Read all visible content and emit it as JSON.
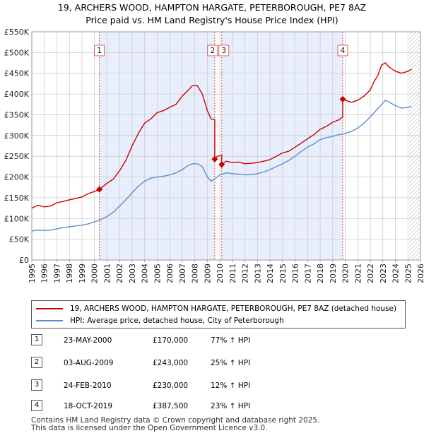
{
  "title_line1": "19, ARCHERS WOOD, HAMPTON HARGATE, PETERBOROUGH, PE7 8AZ",
  "title_line2": "Price paid vs. HM Land Registry's House Price Index (HPI)",
  "colors": {
    "property": "#cc0000",
    "hpi": "#5b8fd0",
    "shade": "#e8eefb",
    "grid": "#cccccc",
    "vline": "#d04040"
  },
  "chart_data": {
    "type": "line",
    "x_range": [
      1995,
      2026
    ],
    "ylim": [
      0,
      550000
    ],
    "y_ticks": [
      {
        "value": 0,
        "label": "£0"
      },
      {
        "value": 50000,
        "label": "£50K"
      },
      {
        "value": 100000,
        "label": "£100K"
      },
      {
        "value": 150000,
        "label": "£150K"
      },
      {
        "value": 200000,
        "label": "£200K"
      },
      {
        "value": 250000,
        "label": "£250K"
      },
      {
        "value": 300000,
        "label": "£300K"
      },
      {
        "value": 350000,
        "label": "£350K"
      },
      {
        "value": 400000,
        "label": "£400K"
      },
      {
        "value": 450000,
        "label": "£450K"
      },
      {
        "value": 500000,
        "label": "£500K"
      },
      {
        "value": 550000,
        "label": "£550K"
      }
    ],
    "x_ticks": [
      "1995",
      "1996",
      "1997",
      "1998",
      "1999",
      "2000",
      "2001",
      "2002",
      "2003",
      "2004",
      "2005",
      "2006",
      "2007",
      "2008",
      "2009",
      "2010",
      "2011",
      "2012",
      "2013",
      "2014",
      "2015",
      "2016",
      "2017",
      "2018",
      "2019",
      "2020",
      "2021",
      "2022",
      "2023",
      "2024",
      "2025",
      "2026"
    ],
    "shaded_ranges": [
      [
        2000.39,
        2009.59
      ],
      [
        2010.15,
        2019.8
      ]
    ],
    "hatched_from": 2025.1,
    "series": [
      {
        "name": "19, ARCHERS WOOD, HAMPTON HARGATE, PETERBOROUGH, PE7 8AZ (detached house)",
        "x": [
          1995.0,
          1995.5,
          1996.0,
          1996.5,
          1997.0,
          1997.5,
          1998.0,
          1998.5,
          1999.0,
          1999.5,
          2000.0,
          2000.39,
          2000.39,
          2001.0,
          2001.5,
          2002.0,
          2002.5,
          2003.0,
          2003.5,
          2004.0,
          2004.5,
          2005.0,
          2005.5,
          2006.0,
          2006.5,
          2007.0,
          2007.5,
          2007.8,
          2008.2,
          2008.6,
          2009.0,
          2009.3,
          2009.59,
          2009.59,
          2009.8,
          2010.15,
          2010.15,
          2010.5,
          2011.0,
          2011.5,
          2012.0,
          2012.5,
          2013.0,
          2013.5,
          2014.0,
          2014.5,
          2015.0,
          2015.5,
          2016.0,
          2016.5,
          2017.0,
          2017.5,
          2018.0,
          2018.5,
          2019.0,
          2019.5,
          2019.8,
          2019.8,
          2020.0,
          2020.5,
          2021.0,
          2021.5,
          2022.0,
          2022.3,
          2022.6,
          2022.9,
          2023.2,
          2023.5,
          2024.0,
          2024.5,
          2025.0,
          2025.3
        ],
        "y": [
          125000,
          132000,
          128000,
          130000,
          138000,
          141000,
          145000,
          148000,
          152000,
          160000,
          165000,
          170000,
          170000,
          185000,
          195000,
          215000,
          240000,
          275000,
          305000,
          330000,
          340000,
          355000,
          360000,
          368000,
          375000,
          395000,
          410000,
          420000,
          420000,
          400000,
          360000,
          340000,
          338000,
          243000,
          250000,
          252000,
          230000,
          238000,
          235000,
          236000,
          232000,
          233000,
          235000,
          238000,
          242000,
          250000,
          258000,
          262000,
          272000,
          282000,
          292000,
          302000,
          315000,
          322000,
          332000,
          338000,
          345000,
          387500,
          385000,
          380000,
          385000,
          395000,
          410000,
          430000,
          445000,
          470000,
          475000,
          465000,
          455000,
          450000,
          455000,
          460000
        ]
      },
      {
        "name": "HPI: Average price, detached house, City of Peterborough",
        "x": [
          1995.0,
          1995.5,
          1996.0,
          1996.5,
          1997.0,
          1997.5,
          1998.0,
          1998.5,
          1999.0,
          1999.5,
          2000.0,
          2000.5,
          2001.0,
          2001.5,
          2002.0,
          2002.5,
          2003.0,
          2003.5,
          2004.0,
          2004.5,
          2005.0,
          2005.5,
          2006.0,
          2006.5,
          2007.0,
          2007.5,
          2007.8,
          2008.2,
          2008.6,
          2009.0,
          2009.3,
          2009.6,
          2010.0,
          2010.5,
          2011.0,
          2011.5,
          2012.0,
          2012.5,
          2013.0,
          2013.5,
          2014.0,
          2014.5,
          2015.0,
          2015.5,
          2016.0,
          2016.5,
          2017.0,
          2017.5,
          2018.0,
          2018.5,
          2019.0,
          2019.5,
          2020.0,
          2020.5,
          2021.0,
          2021.5,
          2022.0,
          2022.3,
          2022.6,
          2022.9,
          2023.2,
          2023.5,
          2024.0,
          2024.5,
          2025.0,
          2025.3
        ],
        "y": [
          70000,
          72000,
          71000,
          72000,
          75000,
          78000,
          80000,
          82000,
          84000,
          87000,
          92000,
          97000,
          105000,
          115000,
          130000,
          145000,
          162000,
          178000,
          190000,
          197000,
          200000,
          202000,
          205000,
          210000,
          218000,
          228000,
          232000,
          232000,
          225000,
          200000,
          190000,
          195000,
          205000,
          210000,
          208000,
          207000,
          205000,
          206000,
          208000,
          212000,
          218000,
          225000,
          232000,
          240000,
          250000,
          262000,
          272000,
          280000,
          290000,
          295000,
          298000,
          302000,
          305000,
          310000,
          318000,
          330000,
          345000,
          355000,
          365000,
          375000,
          385000,
          380000,
          372000,
          366000,
          368000,
          370000
        ]
      }
    ],
    "sales": [
      {
        "label": "1",
        "x": 2000.39,
        "y": 170000
      },
      {
        "label": "2",
        "x": 2009.59,
        "y": 243000
      },
      {
        "label": "3",
        "x": 2010.15,
        "y": 230000
      },
      {
        "label": "4",
        "x": 2019.8,
        "y": 387500
      }
    ]
  },
  "legend": {
    "property_label": "19, ARCHERS WOOD, HAMPTON HARGATE, PETERBOROUGH, PE7 8AZ (detached house)",
    "hpi_label": "HPI: Average price, detached house, City of Peterborough"
  },
  "transactions": [
    {
      "num": "1",
      "date": "23-MAY-2000",
      "price": "£170,000",
      "hpi": "77% ↑ HPI"
    },
    {
      "num": "2",
      "date": "03-AUG-2009",
      "price": "£243,000",
      "hpi": "25% ↑ HPI"
    },
    {
      "num": "3",
      "date": "24-FEB-2010",
      "price": "£230,000",
      "hpi": "12% ↑ HPI"
    },
    {
      "num": "4",
      "date": "18-OCT-2019",
      "price": "£387,500",
      "hpi": "23% ↑ HPI"
    }
  ],
  "footer_line1": "Contains HM Land Registry data © Crown copyright and database right 2025.",
  "footer_line2": "This data is licensed under the Open Government Licence v3.0."
}
